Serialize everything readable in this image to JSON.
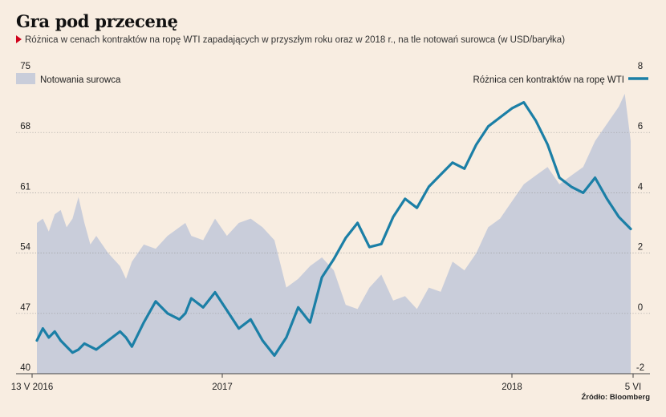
{
  "header": {
    "title": "Gra pod przecenę",
    "subtitle": "Różnica w cenach kontraktów na ropę WTI zapadających w przyszłym roku oraz w 2018 r., na tle notowań surowca (w USD/baryłka)"
  },
  "source": "Źródło: Bloomberg",
  "colors": {
    "area": "#c9cdda",
    "line": "#1b7fa6",
    "grid": "#999999",
    "accent": "#d0021b"
  },
  "chart_data": {
    "type": "area",
    "title": "Gra pod przecenę",
    "left_axis": {
      "ticks": [
        "75",
        "68",
        "61",
        "54",
        "47",
        "40"
      ],
      "range": [
        40,
        75
      ]
    },
    "right_axis": {
      "ticks": [
        "8",
        "6",
        "4",
        "2",
        "0",
        "-2"
      ],
      "range": [
        -2,
        8
      ]
    },
    "x_tick_labels": [
      "13 V 2016",
      "2017",
      "2018",
      "5 VI"
    ],
    "legend": {
      "left": "Notowania surowca",
      "right": "Różnica cen kontraktów na ropę WTI"
    },
    "grid": true,
    "series": [
      {
        "name": "Notowania surowca",
        "axis": "left",
        "x": [
          0.0,
          0.01,
          0.02,
          0.03,
          0.04,
          0.05,
          0.06,
          0.07,
          0.08,
          0.09,
          0.1,
          0.12,
          0.14,
          0.15,
          0.16,
          0.18,
          0.2,
          0.22,
          0.24,
          0.25,
          0.26,
          0.28,
          0.3,
          0.32,
          0.34,
          0.36,
          0.38,
          0.4,
          0.42,
          0.44,
          0.46,
          0.48,
          0.5,
          0.52,
          0.54,
          0.56,
          0.58,
          0.6,
          0.62,
          0.64,
          0.66,
          0.68,
          0.7,
          0.72,
          0.74,
          0.76,
          0.78,
          0.8,
          0.82,
          0.84,
          0.86,
          0.88,
          0.9,
          0.92,
          0.94,
          0.96,
          0.98,
          0.99,
          1.0
        ],
        "values": [
          57.5,
          58,
          56.5,
          58.5,
          59,
          57,
          58,
          60.5,
          57.5,
          55,
          56,
          54,
          52.5,
          51,
          53,
          55,
          54.5,
          56,
          57,
          57.5,
          56,
          55.5,
          58,
          56,
          57.5,
          58,
          57,
          55.5,
          50,
          51,
          52.5,
          53.5,
          52,
          48,
          47.5,
          50,
          51.5,
          48.5,
          49,
          47.5,
          50,
          49.5,
          53,
          52,
          54,
          57,
          58,
          60,
          62,
          63,
          64,
          62,
          63,
          64,
          67,
          69,
          71,
          72.5,
          67
        ]
      },
      {
        "name": "Różnica cen kontraktów na ropę WTI",
        "axis": "right",
        "x": [
          0.0,
          0.01,
          0.02,
          0.03,
          0.04,
          0.05,
          0.06,
          0.07,
          0.08,
          0.09,
          0.1,
          0.12,
          0.14,
          0.15,
          0.16,
          0.18,
          0.2,
          0.22,
          0.24,
          0.25,
          0.26,
          0.28,
          0.3,
          0.32,
          0.34,
          0.36,
          0.38,
          0.4,
          0.42,
          0.44,
          0.46,
          0.48,
          0.5,
          0.52,
          0.54,
          0.56,
          0.58,
          0.6,
          0.62,
          0.64,
          0.66,
          0.68,
          0.7,
          0.72,
          0.74,
          0.76,
          0.78,
          0.8,
          0.82,
          0.84,
          0.86,
          0.88,
          0.9,
          0.92,
          0.94,
          0.96,
          0.98,
          0.99,
          1.0
        ],
        "values": [
          -0.9,
          -0.5,
          -0.8,
          -0.6,
          -0.9,
          -1.1,
          -1.3,
          -1.2,
          -1.0,
          -1.1,
          -1.2,
          -0.9,
          -0.6,
          -0.8,
          -1.1,
          -0.3,
          0.4,
          0.0,
          -0.2,
          0.0,
          0.5,
          0.2,
          0.7,
          0.1,
          -0.5,
          -0.2,
          -0.9,
          -1.4,
          -0.8,
          0.2,
          -0.3,
          1.2,
          1.8,
          2.5,
          3.0,
          2.2,
          2.3,
          3.2,
          3.8,
          3.5,
          4.2,
          4.6,
          5.0,
          4.8,
          5.6,
          6.2,
          6.5,
          6.8,
          7.0,
          6.4,
          5.6,
          4.5,
          4.2,
          4.0,
          4.5,
          3.8,
          3.2,
          3.0,
          2.8
        ]
      }
    ]
  }
}
